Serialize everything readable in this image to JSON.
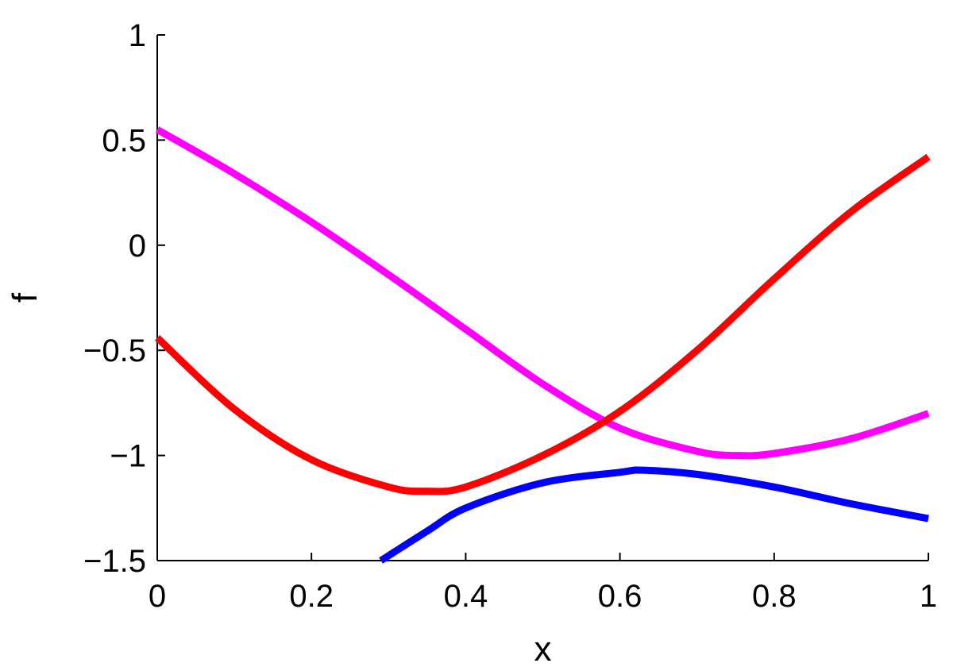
{
  "chart_data": {
    "type": "line",
    "title": "",
    "xlabel": "x",
    "ylabel": "f",
    "xlim": [
      0,
      1
    ],
    "ylim": [
      -1.5,
      1
    ],
    "xticks": [
      0,
      0.2,
      0.4,
      0.6,
      0.8,
      1
    ],
    "xtick_labels": [
      "0",
      "0.2",
      "0.4",
      "0.6",
      "0.8",
      "1"
    ],
    "yticks": [
      1,
      0.5,
      0,
      -0.5,
      -1,
      -1.5
    ],
    "ytick_labels": [
      "1",
      "0.5",
      "0",
      "−0.5",
      "−1",
      "−1.5"
    ],
    "grid": false,
    "legend": "none",
    "series": [
      {
        "color": "#ff00ff",
        "x": [
          0,
          0.1,
          0.2,
          0.3,
          0.4,
          0.5,
          0.6,
          0.7,
          0.75,
          0.8,
          0.9,
          1.0
        ],
        "y": [
          0.55,
          0.34,
          0.11,
          -0.14,
          -0.4,
          -0.66,
          -0.87,
          -0.98,
          -1.0,
          -0.99,
          -0.92,
          -0.8
        ]
      },
      {
        "color": "#ff0000",
        "x": [
          0,
          0.1,
          0.2,
          0.3,
          0.35,
          0.4,
          0.5,
          0.6,
          0.7,
          0.8,
          0.9,
          1.0
        ],
        "y": [
          -0.44,
          -0.78,
          -1.02,
          -1.15,
          -1.17,
          -1.15,
          -1.0,
          -0.79,
          -0.5,
          -0.16,
          0.16,
          0.42
        ]
      },
      {
        "color": "#0000ff",
        "x": [
          0.29,
          0.35,
          0.4,
          0.5,
          0.6,
          0.63,
          0.7,
          0.8,
          0.9,
          1.0
        ],
        "y": [
          -1.5,
          -1.36,
          -1.25,
          -1.13,
          -1.08,
          -1.07,
          -1.09,
          -1.15,
          -1.23,
          -1.3
        ]
      }
    ]
  }
}
